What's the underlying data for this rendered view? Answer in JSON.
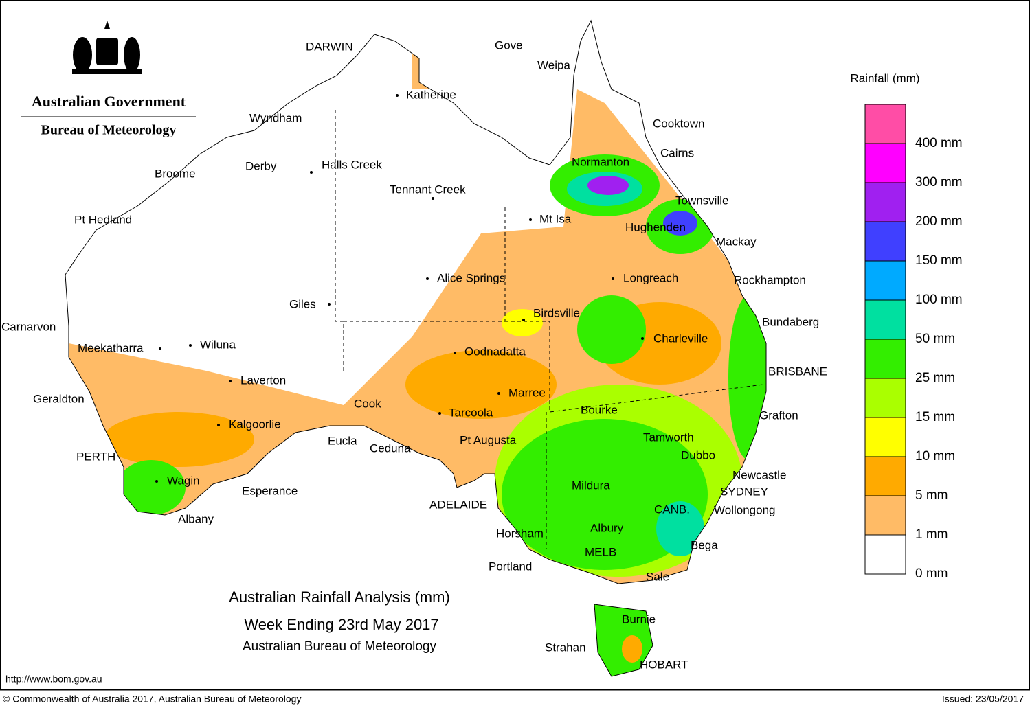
{
  "header": {
    "government": "Australian Government",
    "bureau": "Bureau of Meteorology"
  },
  "cities": [
    "DARWIN",
    "Gove",
    "Weipa",
    "Katherine",
    "Cooktown",
    "Wyndham",
    "Cairns",
    "Normanton",
    "Derby",
    "Halls Creek",
    "Broome",
    "Tennant Creek",
    "Townsville",
    "Pt Hedland",
    "Mt Isa",
    "Hughenden",
    "Mackay",
    "Alice Springs",
    "Longreach",
    "Rockhampton",
    "Giles",
    "Birdsville",
    "Bundaberg",
    "Carnarvon",
    "Charleville",
    "Meekatharra",
    "Wiluna",
    "Oodnadatta",
    "BRISBANE",
    "Laverton",
    "Marree",
    "Geraldton",
    "Cook",
    "Bourke",
    "Tarcoola",
    "Grafton",
    "Kalgoorlie",
    "Tamworth",
    "Eucla",
    "Pt Augusta",
    "Ceduna",
    "Dubbo",
    "PERTH",
    "Newcastle",
    "Wagin",
    "Mildura",
    "SYDNEY",
    "Esperance",
    "ADELAIDE",
    "CANB.",
    "Wollongong",
    "Albany",
    "Albury",
    "Horsham",
    "Bega",
    "MELB",
    "Portland",
    "Sale",
    "Burnie",
    "Strahan",
    "HOBART"
  ],
  "legend": {
    "title": "Rainfall (mm)",
    "colors": [
      "#ff4da6",
      "#ff00ff",
      "#a020f0",
      "#4040ff",
      "#00aaff",
      "#00e0a0",
      "#33ee00",
      "#aaff00",
      "#ffff00",
      "#ffaa00",
      "#ffbb66",
      "#ffffff"
    ],
    "labels": [
      "400 mm",
      "300 mm",
      "200 mm",
      "150 mm",
      "100 mm",
      "50 mm",
      "25 mm",
      "15 mm",
      "10 mm",
      "5 mm",
      "1 mm",
      "0 mm"
    ]
  },
  "title": {
    "line1": "Australian Rainfall Analysis (mm)",
    "line2": "Week Ending 23rd May 2017",
    "line3": "Australian Bureau of Meteorology"
  },
  "footer": {
    "url": "http://www.bom.gov.au",
    "copyright": "© Commonwealth of Australia 2017, Australian Bureau of Meteorology",
    "issued": "Issued: 23/05/2017"
  }
}
